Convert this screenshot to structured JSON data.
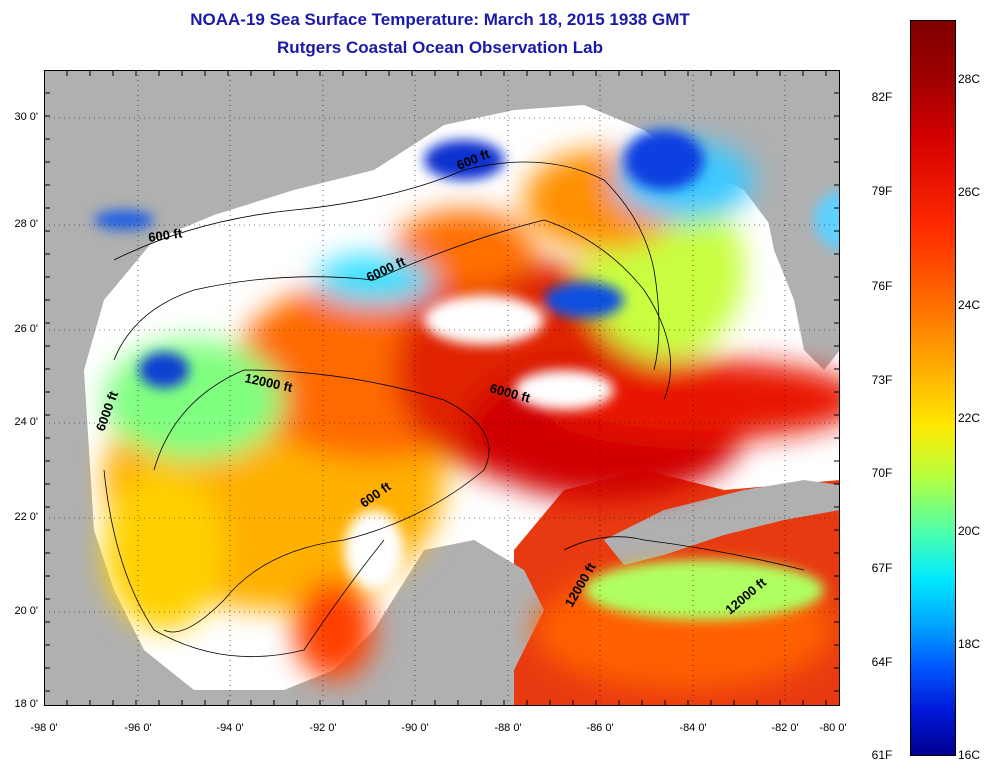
{
  "header": {
    "title": "NOAA-19 Sea Surface Temperature:  March 18, 2015 1938 GMT",
    "subtitle": "Rutgers Coastal Ocean Observation Lab"
  },
  "axes": {
    "x_ticks": [
      "-98 0'",
      "-96 0'",
      "-94 0'",
      "-92 0'",
      "-90 0'",
      "-88 0'",
      "-86 0'",
      "-84 0'",
      "-82 0'",
      "-80 0'"
    ],
    "y_ticks": [
      "30 0'",
      "28 0'",
      "26 0'",
      "24 0'",
      "22 0'",
      "20 0'",
      "18 0'"
    ]
  },
  "contours": [
    {
      "label": "600 ft"
    },
    {
      "label": "600 ft"
    },
    {
      "label": "6000 ft"
    },
    {
      "label": "12000 ft"
    },
    {
      "label": "6000 ft"
    },
    {
      "label": "6000 ft"
    },
    {
      "label": "600 ft"
    },
    {
      "label": "12000 ft"
    },
    {
      "label": "12000 ft"
    }
  ],
  "colorbar": {
    "fahrenheit": [
      "82F",
      "79F",
      "76F",
      "73F",
      "70F",
      "67F",
      "64F",
      "61F"
    ],
    "celsius": [
      "28C",
      "26C",
      "24C",
      "22C",
      "20C",
      "18C",
      "16C"
    ]
  },
  "colors": {
    "land": "#b0b0b0",
    "cloud": "#ffffff",
    "title": "#1a1aa8"
  }
}
